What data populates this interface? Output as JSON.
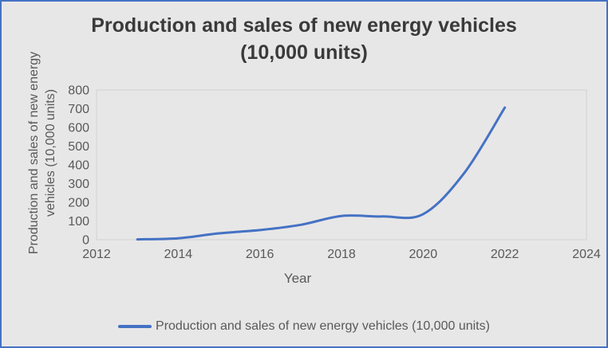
{
  "window": {
    "border_color": "#4472C4",
    "background_color": "#E8E7E7"
  },
  "title": {
    "line1": "Production and sales of new energy vehicles",
    "line2": "(10,000 units)"
  },
  "chart_data": {
    "type": "line",
    "title": "Production and sales of new energy vehicles (10,000 units)",
    "x": [
      2013,
      2014,
      2015,
      2016,
      2017,
      2018,
      2019,
      2020,
      2021,
      2022
    ],
    "series": [
      {
        "name": "Production and sales of new energy vehicles (10,000 units)",
        "values": [
          1.8,
          7.8,
          34,
          51.7,
          79.4,
          127,
          124.2,
          136.6,
          354.5,
          705.8
        ],
        "color": "#4472C4"
      }
    ],
    "xlabel": "Year",
    "ylabel_line1": "Production and sales of new energy",
    "ylabel_line2": "vehicles (10,000 units)",
    "xlim": [
      2012,
      2024
    ],
    "ylim": [
      0,
      800
    ],
    "x_ticks": [
      2012,
      2014,
      2016,
      2018,
      2020,
      2022,
      2024
    ],
    "y_ticks": [
      0,
      100,
      200,
      300,
      400,
      500,
      600,
      700,
      800
    ],
    "grid": false,
    "smooth": true,
    "legend_position": "bottom"
  },
  "legend": {
    "label": "Production and sales of new energy vehicles (10,000 units)",
    "swatch_color": "#4472C4"
  },
  "colors": {
    "line": "#4472C4",
    "plot_border": "#D9D9D9",
    "axis_text": "#595959",
    "title_text": "#3A3A3A"
  }
}
